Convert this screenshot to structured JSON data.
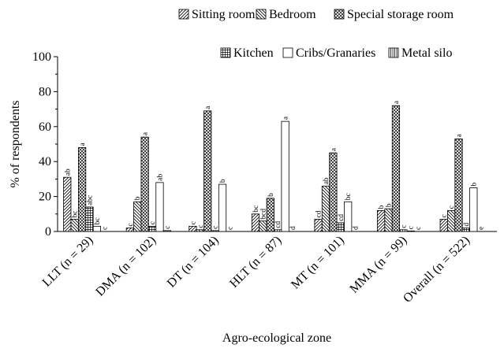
{
  "chart_data": {
    "type": "bar",
    "xlabel": "Agro-ecological zone",
    "ylabel": "% of respondents",
    "ylim": [
      0,
      100
    ],
    "yticks": [
      "0",
      "20",
      "40",
      "60",
      "80",
      "100"
    ],
    "grid": false,
    "legend_position": "top",
    "categories": [
      "LLT (n = 29)",
      "DMA (n = 102)",
      "DT (n = 104)",
      "HLT (n = 87)",
      "MT (n = 101)",
      "MMA (n = 99)",
      "Overall (n = 522)"
    ],
    "series": [
      {
        "name": "Sitting room",
        "pattern": "diagonal-forward",
        "values": [
          31,
          2,
          3,
          10,
          7,
          12,
          7
        ],
        "labels": [
          "ab",
          "c",
          "c",
          "bc",
          "cd",
          "b",
          "c"
        ]
      },
      {
        "name": "Bedroom",
        "pattern": "diagonal-back",
        "values": [
          7,
          17,
          1,
          6,
          26,
          13,
          12
        ],
        "labels": [
          "bc",
          "b",
          "c",
          "bcd",
          "ab",
          "b",
          "c"
        ]
      },
      {
        "name": "Special storage room",
        "pattern": "crosshatch",
        "values": [
          48,
          54,
          69,
          19,
          45,
          72,
          53
        ],
        "labels": [
          "a",
          "a",
          "a",
          "b",
          "a",
          "a",
          "a"
        ]
      },
      {
        "name": "Kitchen",
        "pattern": "grid",
        "values": [
          14,
          3,
          0.5,
          1,
          5,
          1,
          2
        ],
        "labels": [
          "abc",
          "c",
          "c",
          "cd",
          "cd",
          "c",
          "d"
        ]
      },
      {
        "name": "Cribs/Granaries",
        "pattern": "white",
        "values": [
          3,
          28,
          27,
          63,
          17,
          0.3,
          25
        ],
        "labels": [
          "bc",
          "ab",
          "b",
          "a",
          "bc",
          "c",
          "b"
        ]
      },
      {
        "name": "Metal silo",
        "pattern": "vertical",
        "values": [
          0,
          0.5,
          0,
          0,
          0,
          0,
          0
        ],
        "labels": [
          "c",
          "c",
          "c",
          "d",
          "d",
          "c",
          "e"
        ]
      }
    ]
  }
}
